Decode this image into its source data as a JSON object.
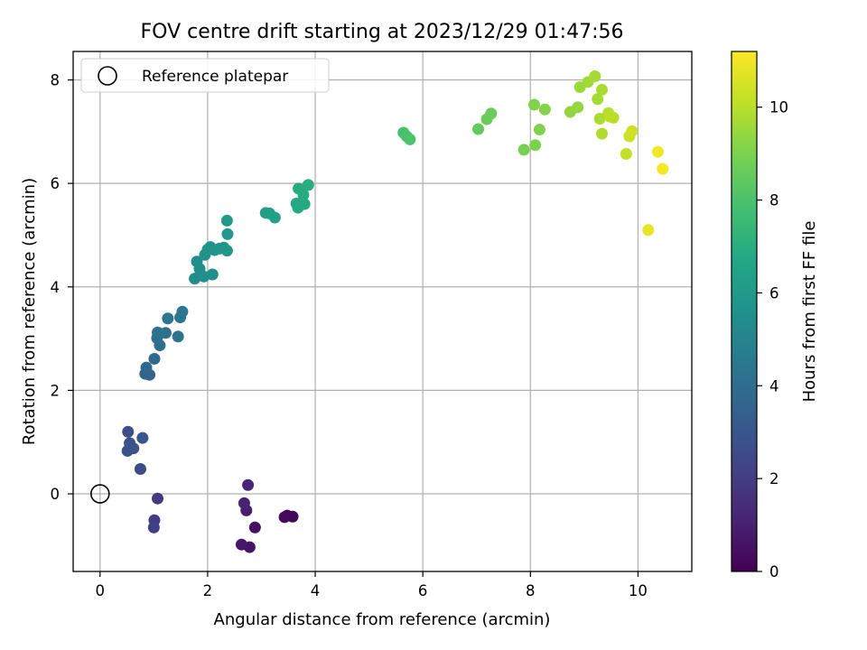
{
  "chart_data": {
    "type": "scatter",
    "title": "FOV centre drift starting at 2023/12/29 01:47:56",
    "xlabel": "Angular distance from reference (arcmin)",
    "ylabel": "Rotation from reference (arcmin)",
    "xlim": [
      -0.5,
      11.0
    ],
    "ylim": [
      -1.5,
      8.55
    ],
    "xticks": [
      0,
      2,
      4,
      6,
      8,
      10
    ],
    "yticks": [
      0,
      2,
      4,
      6,
      8
    ],
    "grid": true,
    "legend": {
      "location": "top-left",
      "entries": [
        {
          "label": "Reference platepar",
          "marker": "open-circle"
        }
      ]
    },
    "reference_point": {
      "x": 0,
      "y": 0
    },
    "colorbar": {
      "label": "Hours from first FF file",
      "colormap": "viridis",
      "range": [
        0,
        11.2
      ],
      "ticks": [
        0,
        2,
        4,
        6,
        8,
        10
      ]
    },
    "series": [
      {
        "points": [
          [
            3.48,
            -0.42,
            0.1
          ],
          [
            3.58,
            -0.44,
            0.2
          ],
          [
            3.43,
            -0.45,
            0.3
          ],
          [
            2.88,
            -0.65,
            0.45
          ],
          [
            2.78,
            -1.03,
            0.6
          ],
          [
            2.63,
            -0.98,
            0.75
          ],
          [
            2.72,
            -0.32,
            0.9
          ],
          [
            2.68,
            -0.18,
            1.05
          ],
          [
            2.75,
            0.17,
            1.2
          ],
          [
            1.07,
            -0.09,
            1.9
          ],
          [
            1.01,
            -0.51,
            2.0
          ],
          [
            1.0,
            -0.65,
            2.1
          ],
          [
            0.75,
            0.48,
            2.55
          ],
          [
            0.52,
            1.2,
            2.7
          ],
          [
            0.55,
            0.98,
            2.8
          ],
          [
            0.62,
            0.88,
            2.85
          ],
          [
            0.51,
            0.83,
            2.9
          ],
          [
            0.79,
            1.08,
            2.95
          ],
          [
            0.92,
            2.3,
            3.6
          ],
          [
            0.84,
            2.32,
            3.65
          ],
          [
            0.86,
            2.44,
            3.7
          ],
          [
            1.01,
            2.61,
            3.8
          ],
          [
            1.11,
            2.87,
            4.05
          ],
          [
            1.06,
            3.01,
            4.1
          ],
          [
            1.22,
            3.11,
            4.15
          ],
          [
            1.07,
            3.12,
            4.2
          ],
          [
            1.45,
            3.04,
            4.25
          ],
          [
            1.26,
            3.39,
            4.35
          ],
          [
            1.49,
            3.41,
            4.4
          ],
          [
            1.53,
            3.52,
            4.45
          ],
          [
            1.76,
            4.16,
            5.3
          ],
          [
            1.85,
            4.35,
            5.4
          ],
          [
            1.8,
            4.49,
            5.45
          ],
          [
            2.09,
            4.24,
            5.55
          ],
          [
            1.93,
            4.2,
            5.5
          ],
          [
            1.95,
            4.62,
            5.6
          ],
          [
            2.0,
            4.72,
            5.65
          ],
          [
            2.05,
            4.77,
            5.7
          ],
          [
            2.13,
            4.71,
            5.75
          ],
          [
            2.22,
            4.74,
            5.8
          ],
          [
            2.3,
            4.76,
            5.85
          ],
          [
            2.36,
            4.7,
            5.9
          ],
          [
            2.37,
            5.02,
            5.95
          ],
          [
            2.36,
            5.28,
            6.0
          ],
          [
            3.08,
            5.43,
            6.3
          ],
          [
            3.15,
            5.42,
            6.35
          ],
          [
            3.25,
            5.34,
            6.4
          ],
          [
            3.65,
            5.61,
            6.7
          ],
          [
            3.68,
            5.53,
            6.75
          ],
          [
            3.8,
            5.6,
            6.8
          ],
          [
            3.78,
            5.78,
            6.85
          ],
          [
            3.69,
            5.9,
            6.9
          ],
          [
            3.87,
            5.97,
            6.95
          ],
          [
            5.64,
            6.98,
            7.9
          ],
          [
            5.7,
            6.91,
            7.95
          ],
          [
            5.76,
            6.85,
            8.0
          ],
          [
            7.03,
            7.05,
            8.5
          ],
          [
            7.19,
            7.24,
            8.6
          ],
          [
            7.27,
            7.35,
            8.65
          ],
          [
            7.88,
            6.65,
            8.9
          ],
          [
            8.09,
            6.74,
            9.0
          ],
          [
            8.17,
            7.04,
            9.05
          ],
          [
            8.07,
            7.52,
            9.1
          ],
          [
            8.27,
            7.43,
            9.15
          ],
          [
            8.74,
            7.38,
            9.35
          ],
          [
            8.88,
            7.47,
            9.4
          ],
          [
            8.92,
            7.86,
            9.5
          ],
          [
            9.07,
            7.96,
            9.6
          ],
          [
            9.2,
            8.07,
            9.65
          ],
          [
            9.25,
            7.63,
            9.7
          ],
          [
            9.33,
            7.81,
            9.75
          ],
          [
            9.29,
            7.25,
            9.8
          ],
          [
            9.33,
            6.96,
            9.85
          ],
          [
            9.45,
            7.36,
            9.95
          ],
          [
            9.54,
            7.27,
            10.0
          ],
          [
            9.48,
            7.29,
            10.05
          ],
          [
            9.78,
            6.57,
            10.2
          ],
          [
            9.84,
            6.91,
            10.3
          ],
          [
            9.89,
            7.01,
            10.4
          ],
          [
            10.19,
            5.1,
            10.8
          ],
          [
            10.37,
            6.61,
            11.0
          ],
          [
            10.46,
            6.28,
            11.1
          ]
        ]
      }
    ]
  }
}
